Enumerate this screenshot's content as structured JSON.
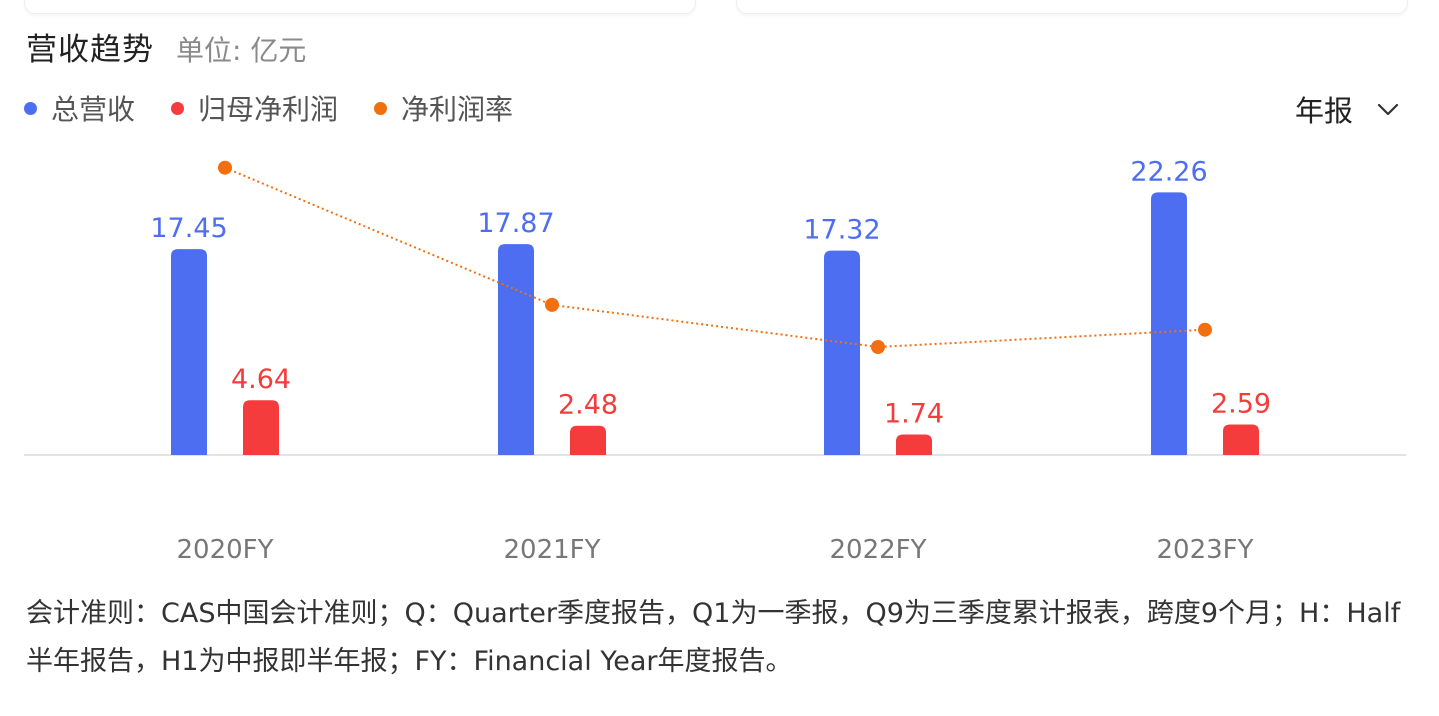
{
  "header": {
    "title": "营收趋势",
    "unit": "单位: 亿元"
  },
  "legend": [
    {
      "label": "总营收",
      "color": "#4e6ef2"
    },
    {
      "label": "归母净利润",
      "color": "#f43c3c"
    },
    {
      "label": "净利润率",
      "color": "#f26f0f"
    }
  ],
  "period_selector": {
    "label": "年报",
    "icon": "chevron-down-icon"
  },
  "chart_data": {
    "type": "bar",
    "categories": [
      "2020FY",
      "2021FY",
      "2022FY",
      "2023FY"
    ],
    "series": [
      {
        "name": "总营收",
        "type": "bar",
        "color": "#4e6ef2",
        "values": [
          17.45,
          17.87,
          17.32,
          22.26
        ],
        "labels": [
          "17.45",
          "17.87",
          "17.32",
          "22.26"
        ]
      },
      {
        "name": "归母净利润",
        "type": "bar",
        "color": "#f43c3c",
        "values": [
          4.64,
          2.48,
          1.74,
          2.59
        ],
        "labels": [
          "4.64",
          "2.48",
          "1.74",
          "2.59"
        ]
      },
      {
        "name": "净利润率",
        "type": "line",
        "style": "dotted",
        "color": "#f26f0f",
        "values": [
          26.6,
          13.9,
          10.0,
          11.6
        ]
      }
    ],
    "grid": false,
    "legend_position": "top-left"
  },
  "footnote": "会计准则：CAS中国会计准则；Q：Quarter季度报告，Q1为一季报，Q9为三季度累计报表，跨度9个月；H：Half半年报告，H1为中报即半年报；FY：Financial Year年度报告。"
}
